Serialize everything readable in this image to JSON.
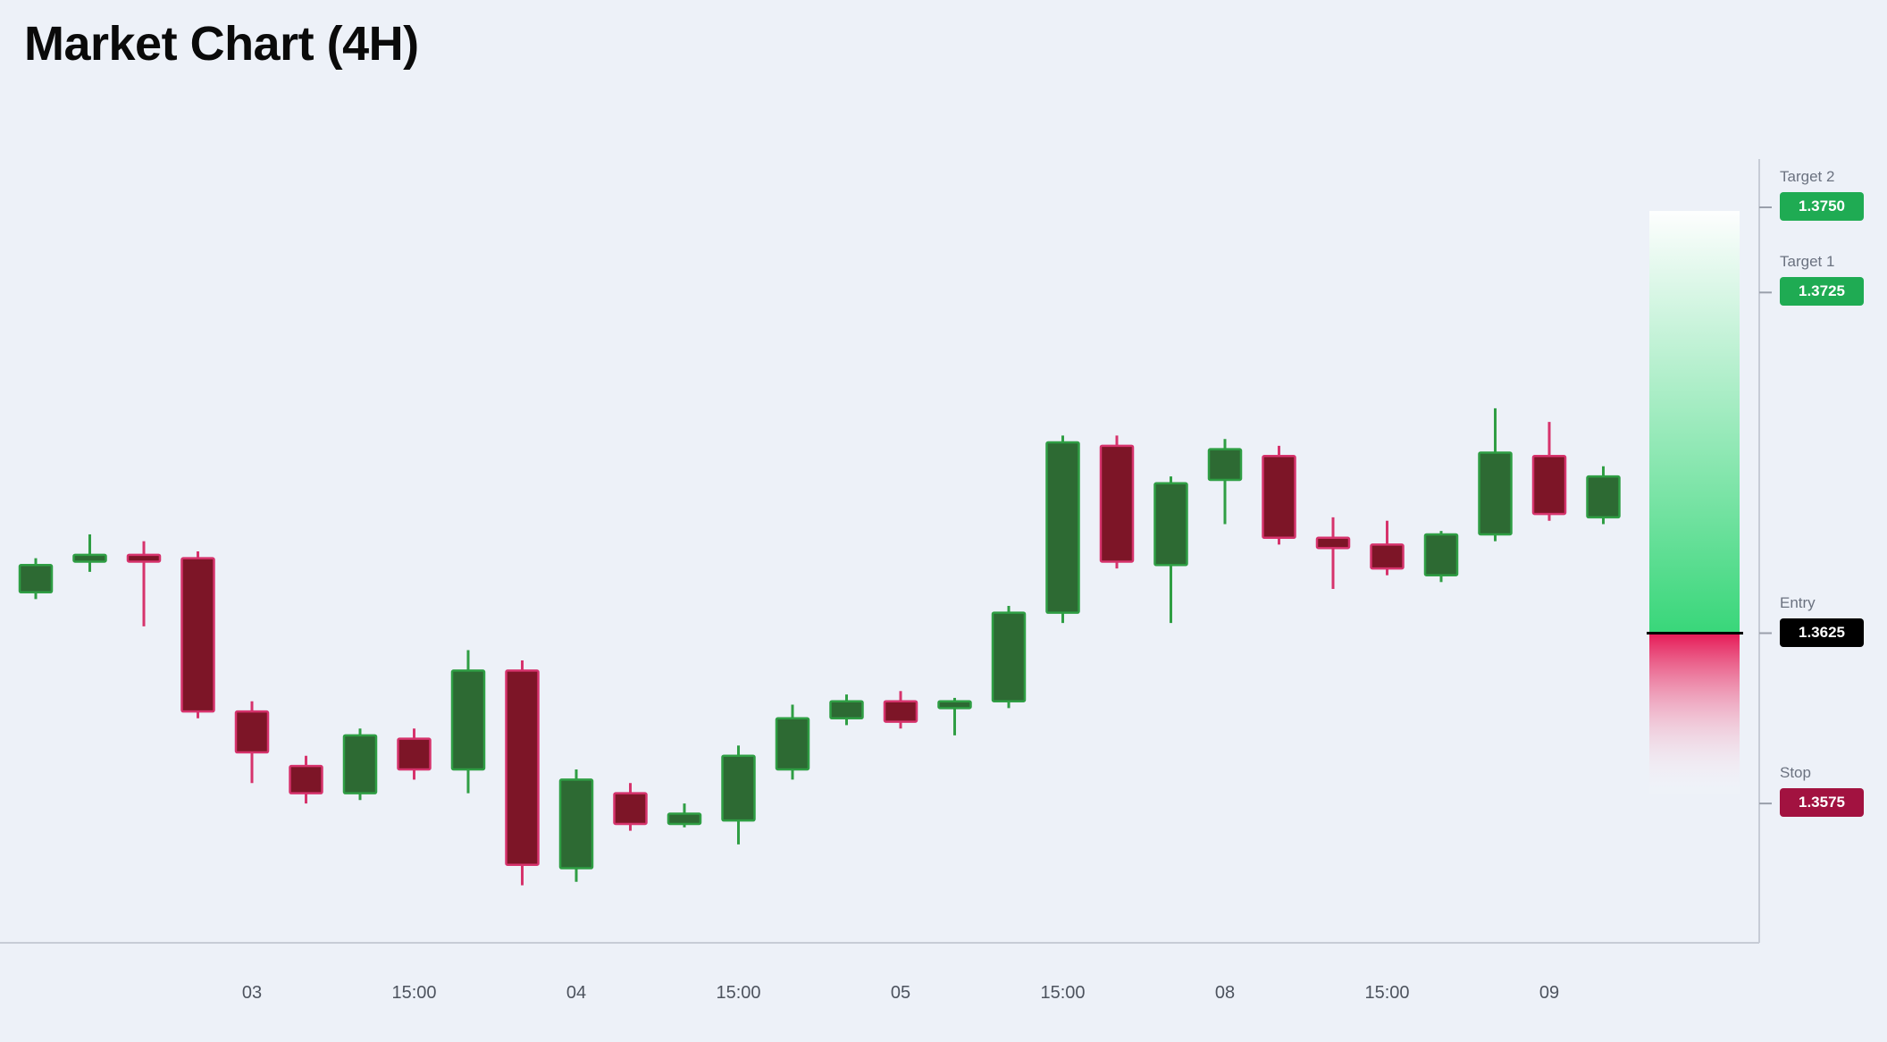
{
  "title": "Market Chart (4H)",
  "colors": {
    "background": "#edf1f8",
    "title_text": "#0a0a0a",
    "bull_fill": "#2d6a33",
    "bull_stroke": "#2f9e44",
    "bear_fill": "#7d1527",
    "bear_stroke": "#d6336c",
    "axis_line": "#c7ccd6",
    "tick_text": "#4d535e",
    "level_label_text": "#6b7280",
    "level_tick": "#9aa0ab",
    "zone_green": "#2fd573",
    "zone_red": "#e50e4d",
    "entry_line": "#000000",
    "badge_text": "#ffffff"
  },
  "levels": [
    {
      "id": "target2",
      "label": "Target 2",
      "value": "1.3750",
      "price": 1.375,
      "badge_color": "#1fab53"
    },
    {
      "id": "target1",
      "label": "Target 1",
      "value": "1.3725",
      "price": 1.3725,
      "badge_color": "#1fab53"
    },
    {
      "id": "entry",
      "label": "Entry",
      "value": "1.3625",
      "price": 1.3625,
      "badge_color": "#000000"
    },
    {
      "id": "stop",
      "label": "Stop",
      "value": "1.3575",
      "price": 1.3575,
      "badge_color": "#a21240"
    }
  ],
  "chart_data": {
    "type": "candlestick",
    "title": "Market Chart (4H)",
    "timeframe": "4H",
    "price_axis_range": [
      1.3545,
      1.3775
    ],
    "levels": {
      "target2": 1.375,
      "target1": 1.3725,
      "entry": 1.3625,
      "stop": 1.3575
    },
    "x_ticks": [
      {
        "index": 4,
        "label": "03"
      },
      {
        "index": 7,
        "label": "15:00"
      },
      {
        "index": 10,
        "label": "04"
      },
      {
        "index": 13,
        "label": "15:00"
      },
      {
        "index": 16,
        "label": "05"
      },
      {
        "index": 19,
        "label": "15:00"
      },
      {
        "index": 22,
        "label": "08"
      },
      {
        "index": 25,
        "label": "15:00"
      },
      {
        "index": 28,
        "label": "09"
      }
    ],
    "candles": [
      {
        "o": 1.3637,
        "h": 1.3647,
        "l": 1.3635,
        "c": 1.3645
      },
      {
        "o": 1.3646,
        "h": 1.3654,
        "l": 1.3643,
        "c": 1.3648
      },
      {
        "o": 1.3648,
        "h": 1.3652,
        "l": 1.3627,
        "c": 1.3646
      },
      {
        "o": 1.3647,
        "h": 1.3649,
        "l": 1.36,
        "c": 1.3602
      },
      {
        "o": 1.3602,
        "h": 1.3605,
        "l": 1.3581,
        "c": 1.359
      },
      {
        "o": 1.3586,
        "h": 1.3589,
        "l": 1.3575,
        "c": 1.3578
      },
      {
        "o": 1.3578,
        "h": 1.3597,
        "l": 1.3576,
        "c": 1.3595
      },
      {
        "o": 1.3594,
        "h": 1.3597,
        "l": 1.3582,
        "c": 1.3585
      },
      {
        "o": 1.3585,
        "h": 1.362,
        "l": 1.3578,
        "c": 1.3614
      },
      {
        "o": 1.3614,
        "h": 1.3617,
        "l": 1.3551,
        "c": 1.3557
      },
      {
        "o": 1.3556,
        "h": 1.3585,
        "l": 1.3552,
        "c": 1.3582
      },
      {
        "o": 1.3578,
        "h": 1.3581,
        "l": 1.3567,
        "c": 1.3569
      },
      {
        "o": 1.3569,
        "h": 1.3575,
        "l": 1.3568,
        "c": 1.3572
      },
      {
        "o": 1.357,
        "h": 1.3592,
        "l": 1.3563,
        "c": 1.3589
      },
      {
        "o": 1.3585,
        "h": 1.3604,
        "l": 1.3582,
        "c": 1.36
      },
      {
        "o": 1.36,
        "h": 1.3607,
        "l": 1.3598,
        "c": 1.3605
      },
      {
        "o": 1.3605,
        "h": 1.3608,
        "l": 1.3597,
        "c": 1.3599
      },
      {
        "o": 1.3603,
        "h": 1.3606,
        "l": 1.3595,
        "c": 1.3605
      },
      {
        "o": 1.3605,
        "h": 1.3633,
        "l": 1.3603,
        "c": 1.3631
      },
      {
        "o": 1.3631,
        "h": 1.3683,
        "l": 1.3628,
        "c": 1.3681
      },
      {
        "o": 1.368,
        "h": 1.3683,
        "l": 1.3644,
        "c": 1.3646
      },
      {
        "o": 1.3645,
        "h": 1.3671,
        "l": 1.3628,
        "c": 1.3669
      },
      {
        "o": 1.367,
        "h": 1.3682,
        "l": 1.3657,
        "c": 1.3679
      },
      {
        "o": 1.3677,
        "h": 1.368,
        "l": 1.3651,
        "c": 1.3653
      },
      {
        "o": 1.3653,
        "h": 1.3659,
        "l": 1.3638,
        "c": 1.365
      },
      {
        "o": 1.3651,
        "h": 1.3658,
        "l": 1.3642,
        "c": 1.3644
      },
      {
        "o": 1.3642,
        "h": 1.3655,
        "l": 1.364,
        "c": 1.3654
      },
      {
        "o": 1.3654,
        "h": 1.3691,
        "l": 1.3652,
        "c": 1.3678
      },
      {
        "o": 1.3677,
        "h": 1.3687,
        "l": 1.3658,
        "c": 1.366
      },
      {
        "o": 1.3659,
        "h": 1.3674,
        "l": 1.3657,
        "c": 1.3671
      }
    ]
  }
}
